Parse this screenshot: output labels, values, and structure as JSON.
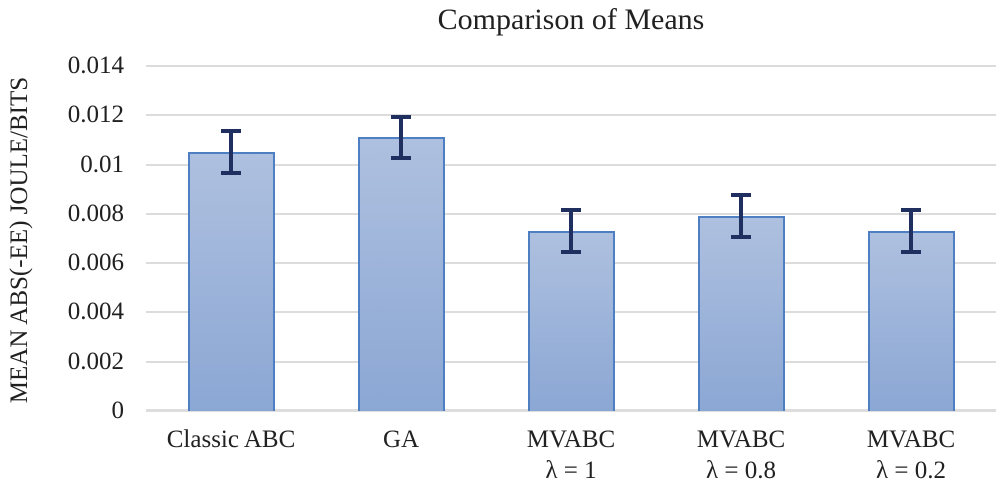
{
  "chart_data": {
    "type": "bar",
    "title": "Comparison of Means",
    "xlabel": "",
    "ylabel": "MEAN ABS(-EE) JOULE/BITS",
    "categories": [
      "Classic ABC",
      "GA",
      "MVABC\nλ = 1",
      "MVABC\nλ = 0.8",
      "MVABC\nλ = 0.2"
    ],
    "values": [
      0.0105,
      0.0111,
      0.0073,
      0.0079,
      0.0073
    ],
    "errors": [
      0.00085,
      0.00085,
      0.00085,
      0.00085,
      0.00085
    ],
    "ylim": [
      0,
      0.014
    ],
    "yticks": [
      0,
      0.002,
      0.004,
      0.006,
      0.008,
      0.01,
      0.012,
      0.014
    ],
    "ytick_labels": [
      "0",
      "0.002",
      "0.004",
      "0.006",
      "0.008",
      "0.01",
      "0.012",
      "0.014"
    ],
    "grid": true,
    "legend": false,
    "colors": {
      "bar_fill_top": "#aec0df",
      "bar_fill_bottom": "#8ba7d4",
      "bar_border": "#4f7fc3",
      "error_bar": "#1f3060",
      "gridline": "#dcdcdc",
      "axis_line": "#dddddd",
      "text": "#212121"
    }
  }
}
